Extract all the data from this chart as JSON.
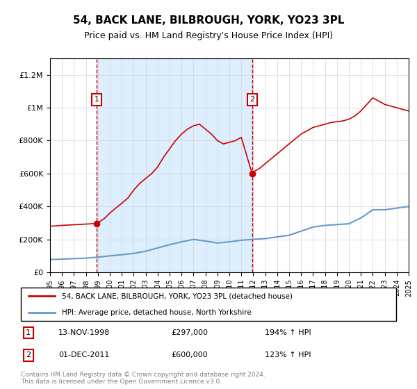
{
  "title": "54, BACK LANE, BILBROUGH, YORK, YO23 3PL",
  "subtitle": "Price paid vs. HM Land Registry's House Price Index (HPI)",
  "legend_line1": "54, BACK LANE, BILBROUGH, YORK, YO23 3PL (detached house)",
  "legend_line2": "HPI: Average price, detached house, North Yorkshire",
  "transaction1_label": "1",
  "transaction1_date": "13-NOV-1998",
  "transaction1_price": "£297,000",
  "transaction1_hpi": "194% ↑ HPI",
  "transaction2_label": "2",
  "transaction2_date": "01-DEC-2011",
  "transaction2_price": "£600,000",
  "transaction2_hpi": "123% ↑ HPI",
  "footer": "Contains HM Land Registry data © Crown copyright and database right 2024.\nThis data is licensed under the Open Government Licence v3.0.",
  "red_color": "#cc0000",
  "blue_color": "#6699cc",
  "shaded_color": "#ddeeff",
  "background_color": "#ffffff",
  "ylim": [
    0,
    1300000
  ],
  "yticks": [
    0,
    200000,
    400000,
    600000,
    800000,
    1000000,
    1200000
  ],
  "ytick_labels": [
    "£0",
    "£200K",
    "£400K",
    "£600K",
    "£800K",
    "£1M",
    "£1.2M"
  ],
  "hpi_years": [
    1995,
    1996,
    1997,
    1998,
    1999,
    2000,
    2001,
    2002,
    2003,
    2004,
    2005,
    2006,
    2007,
    2008,
    2009,
    2010,
    2011,
    2012,
    2013,
    2014,
    2015,
    2016,
    2017,
    2018,
    2019,
    2020,
    2021,
    2022,
    2023,
    2024,
    2025
  ],
  "hpi_values": [
    78000,
    80000,
    83000,
    86000,
    92000,
    100000,
    107000,
    115000,
    128000,
    148000,
    168000,
    185000,
    200000,
    190000,
    178000,
    185000,
    195000,
    200000,
    205000,
    215000,
    225000,
    250000,
    275000,
    285000,
    290000,
    295000,
    330000,
    380000,
    380000,
    390000,
    400000
  ],
  "red_line_years_float": [
    1995.0,
    1995.5,
    1996.0,
    1996.5,
    1997.0,
    1997.5,
    1998.0,
    1998.5,
    1998.9,
    1999.2,
    1999.6,
    2000.0,
    2000.5,
    2001.0,
    2001.5,
    2002.0,
    2002.5,
    2003.0,
    2003.5,
    2004.0,
    2004.5,
    2005.0,
    2005.5,
    2006.0,
    2006.5,
    2007.0,
    2007.5,
    2008.0,
    2008.5,
    2009.0,
    2009.5,
    2010.0,
    2010.5,
    2011.0,
    2011.9,
    2012.0,
    2012.5,
    2013.0,
    2013.5,
    2014.0,
    2014.5,
    2015.0,
    2015.5,
    2016.0,
    2016.5,
    2017.0,
    2017.5,
    2018.0,
    2018.5,
    2019.0,
    2019.5,
    2020.0,
    2020.5,
    2021.0,
    2021.5,
    2022.0,
    2022.5,
    2023.0,
    2023.5,
    2024.0,
    2024.5,
    2025.0
  ],
  "red_line_values": [
    280000,
    282000,
    285000,
    287000,
    289000,
    291000,
    293000,
    295000,
    297000,
    310000,
    330000,
    360000,
    390000,
    420000,
    450000,
    500000,
    540000,
    570000,
    600000,
    640000,
    700000,
    750000,
    800000,
    840000,
    870000,
    890000,
    900000,
    870000,
    840000,
    800000,
    780000,
    790000,
    800000,
    820000,
    600000,
    610000,
    630000,
    660000,
    690000,
    720000,
    750000,
    780000,
    810000,
    840000,
    860000,
    880000,
    890000,
    900000,
    910000,
    915000,
    920000,
    930000,
    950000,
    980000,
    1020000,
    1060000,
    1040000,
    1020000,
    1010000,
    1000000,
    990000,
    980000
  ],
  "shaded_x_start": 1998.9,
  "shaded_x_end": 2011.9,
  "transaction1_x": 1998.9,
  "transaction1_y": 297000,
  "transaction2_x": 2011.9,
  "transaction2_y": 600000,
  "xtick_years": [
    1995,
    1996,
    1997,
    1998,
    1999,
    2000,
    2001,
    2002,
    2003,
    2004,
    2005,
    2006,
    2007,
    2008,
    2009,
    2010,
    2011,
    2012,
    2013,
    2014,
    2015,
    2016,
    2017,
    2018,
    2019,
    2020,
    2021,
    2022,
    2023,
    2024,
    2025
  ]
}
